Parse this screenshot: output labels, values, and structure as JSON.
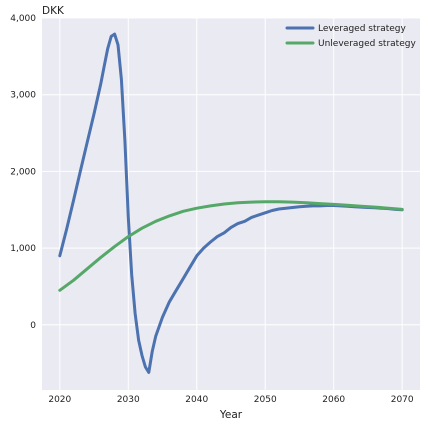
{
  "chart_data": {
    "type": "line",
    "title": "",
    "xlabel": "Year",
    "ylabel": "DKK",
    "xlim": [
      2017.4,
      2072.6
    ],
    "ylim": [
      -850,
      4000
    ],
    "xticks": [
      2020,
      2030,
      2040,
      2050,
      2060,
      2070
    ],
    "xtick_labels": [
      "2020",
      "2030",
      "2040",
      "2050",
      "2060",
      "2070"
    ],
    "yticks": [
      0,
      1000,
      2000,
      3000,
      4000
    ],
    "ytick_labels": [
      "0",
      "1,000",
      "2,000",
      "3,000",
      "4,000"
    ],
    "grid": true,
    "legend_position": "top-right",
    "series": [
      {
        "name": "Leveraged strategy",
        "color": "#4C72B0",
        "x": [
          2020,
          2021,
          2022,
          2023,
          2024,
          2025,
          2026,
          2026.5,
          2027,
          2027.5,
          2028,
          2028.5,
          2029,
          2029.5,
          2030,
          2030.5,
          2031,
          2031.5,
          2032,
          2032.5,
          2033,
          2033.5,
          2034,
          2035,
          2036,
          2037,
          2038,
          2039,
          2040,
          2041,
          2042,
          2043,
          2044,
          2045,
          2046,
          2047,
          2048,
          2049,
          2050,
          2051,
          2052,
          2053,
          2054,
          2055,
          2056,
          2057,
          2058,
          2059,
          2060,
          2061,
          2062,
          2063,
          2064,
          2065,
          2066,
          2067,
          2068,
          2069,
          2070
        ],
        "y": [
          900,
          1250,
          1620,
          2000,
          2380,
          2750,
          3150,
          3380,
          3600,
          3760,
          3790,
          3650,
          3200,
          2400,
          1400,
          650,
          150,
          -200,
          -400,
          -550,
          -620,
          -350,
          -150,
          100,
          300,
          450,
          600,
          750,
          900,
          1000,
          1080,
          1150,
          1200,
          1270,
          1320,
          1350,
          1400,
          1430,
          1460,
          1490,
          1510,
          1520,
          1530,
          1540,
          1545,
          1550,
          1550,
          1555,
          1555,
          1550,
          1545,
          1540,
          1535,
          1530,
          1525,
          1520,
          1515,
          1505,
          1500
        ]
      },
      {
        "name": "Unleveraged strategy",
        "color": "#55A868",
        "x": [
          2020,
          2022,
          2024,
          2026,
          2028,
          2030,
          2032,
          2034,
          2036,
          2038,
          2040,
          2042,
          2044,
          2046,
          2048,
          2050,
          2052,
          2054,
          2056,
          2058,
          2060,
          2062,
          2064,
          2066,
          2068,
          2070
        ],
        "y": [
          450,
          580,
          730,
          880,
          1020,
          1150,
          1260,
          1350,
          1420,
          1480,
          1520,
          1550,
          1575,
          1590,
          1600,
          1605,
          1605,
          1600,
          1590,
          1580,
          1570,
          1560,
          1545,
          1535,
          1520,
          1505
        ]
      }
    ]
  }
}
